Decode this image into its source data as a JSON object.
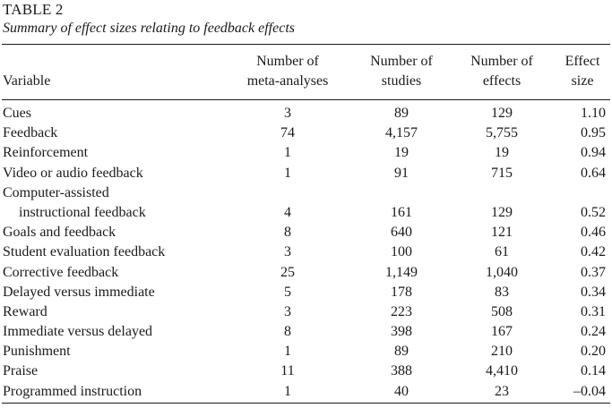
{
  "table": {
    "label": "TABLE 2",
    "caption": "Summary of effect sizes relating to feedback effects",
    "headers": {
      "variable": "Variable",
      "meta_line1": "Number of",
      "meta_line2": "meta-analyses",
      "studies_line1": "Number of",
      "studies_line2": "studies",
      "effects_line1": "Number of",
      "effects_line2": "effects",
      "size_line1": "Effect",
      "size_line2": "size"
    },
    "rows": [
      {
        "variable": "Cues",
        "meta": "3",
        "studies": "89",
        "effects": "129",
        "size": "1.10"
      },
      {
        "variable": "Feedback",
        "meta": "74",
        "studies": "4,157",
        "effects": "5,755",
        "size": "0.95"
      },
      {
        "variable": "Reinforcement",
        "meta": "1",
        "studies": "19",
        "effects": "19",
        "size": "0.94"
      },
      {
        "variable": "Video or audio feedback",
        "meta": "1",
        "studies": "91",
        "effects": "715",
        "size": "0.64"
      },
      {
        "variable": "Computer-assisted",
        "variable_line2": "instructional feedback",
        "meta": "4",
        "studies": "161",
        "effects": "129",
        "size": "0.52"
      },
      {
        "variable": "Goals and feedback",
        "meta": "8",
        "studies": "640",
        "effects": "121",
        "size": "0.46"
      },
      {
        "variable": "Student evaluation feedback",
        "meta": "3",
        "studies": "100",
        "effects": "61",
        "size": "0.42"
      },
      {
        "variable": "Corrective feedback",
        "meta": "25",
        "studies": "1,149",
        "effects": "1,040",
        "size": "0.37"
      },
      {
        "variable": "Delayed versus immediate",
        "meta": "5",
        "studies": "178",
        "effects": "83",
        "size": "0.34"
      },
      {
        "variable": "Reward",
        "meta": "3",
        "studies": "223",
        "effects": "508",
        "size": "0.31"
      },
      {
        "variable": "Immediate versus delayed",
        "meta": "8",
        "studies": "398",
        "effects": "167",
        "size": "0.24"
      },
      {
        "variable": "Punishment",
        "meta": "1",
        "studies": "89",
        "effects": "210",
        "size": "0.20"
      },
      {
        "variable": "Praise",
        "meta": "11",
        "studies": "388",
        "effects": "4,410",
        "size": "0.14"
      },
      {
        "variable": "Programmed instruction",
        "meta": "1",
        "studies": "40",
        "effects": "23",
        "size": "–0.04"
      }
    ]
  }
}
